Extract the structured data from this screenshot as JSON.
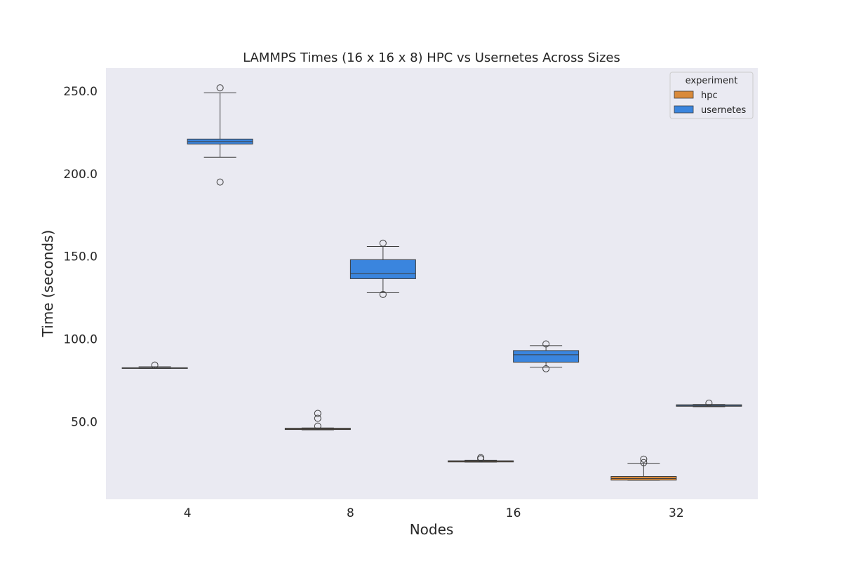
{
  "chart_data": {
    "type": "box",
    "title": "LAMMPS Times (16 x 16 x 8) HPC vs Usernetes Across Sizes",
    "xlabel": "Nodes",
    "ylabel": "Time (seconds)",
    "categories": [
      "4",
      "8",
      "16",
      "32"
    ],
    "ylim": [
      3,
      264
    ],
    "yticks": [
      50,
      100,
      150,
      200,
      250
    ],
    "ytick_labels": [
      "50.0",
      "100.0",
      "150.0",
      "200.0",
      "250.0"
    ],
    "grid": false,
    "legend": {
      "title": "experiment",
      "placement": "top-right"
    },
    "series": [
      {
        "name": "hpc",
        "color": "#d98a3a",
        "boxes": [
          {
            "category": "4",
            "whisker_low": 82.2,
            "q1": 82.3,
            "median": 82.5,
            "q3": 82.6,
            "whisker_high": 83.2,
            "outliers": [
              84.2
            ]
          },
          {
            "category": "8",
            "whisker_low": 45.0,
            "q1": 45.2,
            "median": 45.6,
            "q3": 46.0,
            "whisker_high": 46.2,
            "outliers": [
              47.3,
              52.0,
              55.0
            ]
          },
          {
            "category": "16",
            "whisker_low": 25.5,
            "q1": 25.6,
            "median": 26.0,
            "q3": 26.3,
            "whisker_high": 26.6,
            "outliers": [
              27.5,
              28.2
            ]
          },
          {
            "category": "32",
            "whisker_low": 14.5,
            "q1": 14.6,
            "median": 15.5,
            "q3": 16.8,
            "whisker_high": 24.8,
            "outliers": [
              25.2,
              27.3
            ]
          }
        ]
      },
      {
        "name": "usernetes",
        "color": "#3a85de",
        "boxes": [
          {
            "category": "4",
            "whisker_low": 210.0,
            "q1": 218.0,
            "median": 219.5,
            "q3": 221.0,
            "whisker_high": 249.0,
            "outliers": [
              195.0,
              252.0
            ]
          },
          {
            "category": "8",
            "whisker_low": 128.0,
            "q1": 136.5,
            "median": 139.5,
            "q3": 148.0,
            "whisker_high": 156.0,
            "outliers": [
              127.0,
              158.0
            ]
          },
          {
            "category": "16",
            "whisker_low": 83.0,
            "q1": 86.0,
            "median": 90.5,
            "q3": 93.0,
            "whisker_high": 96.0,
            "outliers": [
              82.0,
              97.0
            ]
          },
          {
            "category": "32",
            "whisker_low": 59.0,
            "q1": 59.3,
            "median": 59.8,
            "q3": 60.2,
            "whisker_high": 60.4,
            "outliers": [
              61.2
            ]
          }
        ]
      }
    ]
  }
}
